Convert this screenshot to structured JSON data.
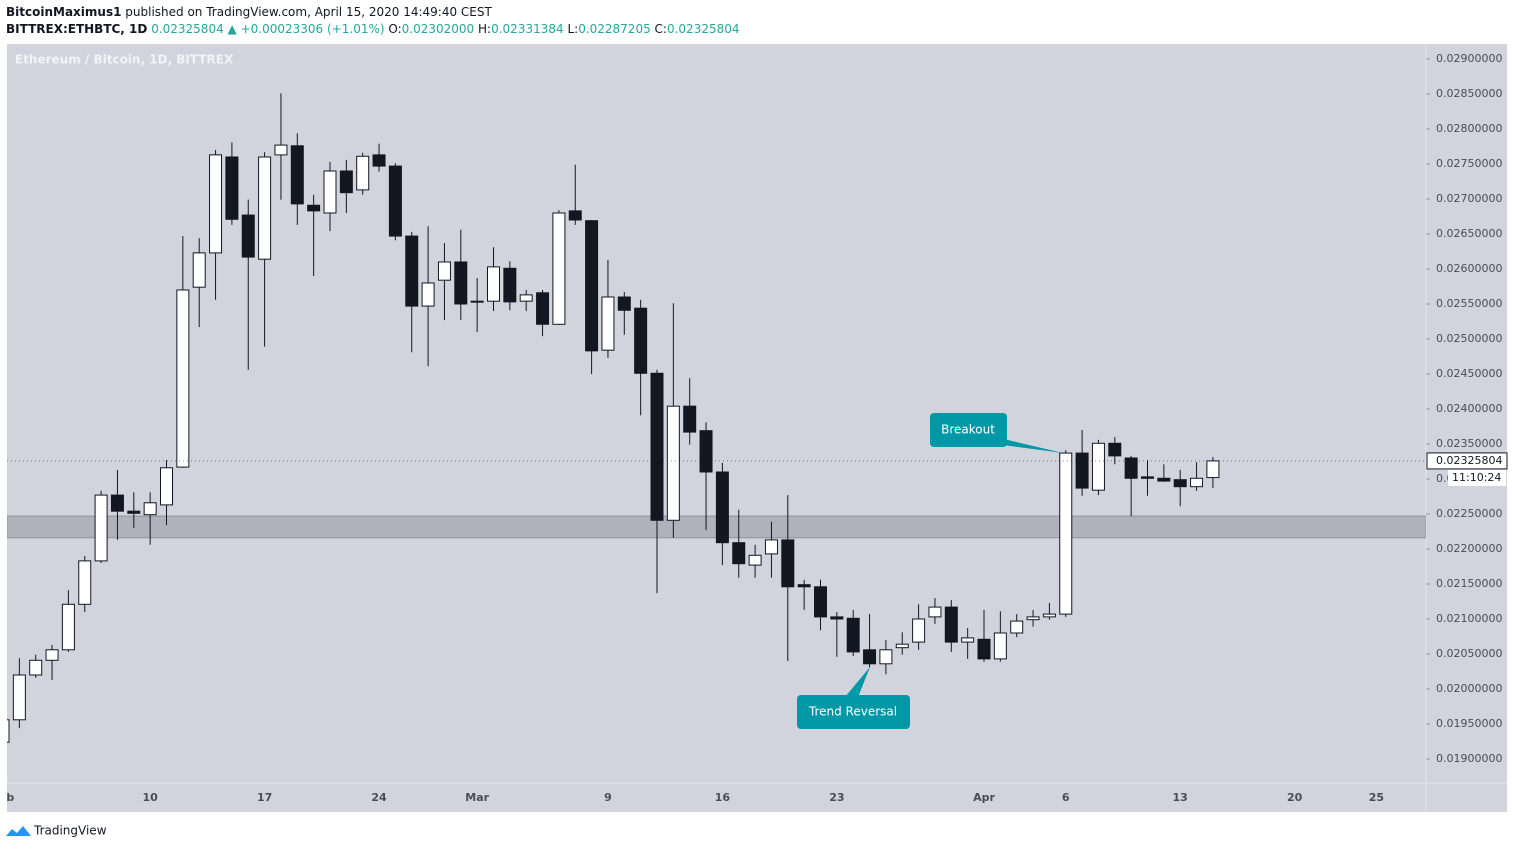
{
  "header": {
    "author": "BitcoinMaximus1",
    "published": "published on TradingView.com, April 15, 2020 14:49:40 CEST",
    "symbol": "BITTREX:ETHBTC, 1D",
    "price": "0.02325804",
    "change": "+0.00023306 (+1.01%)",
    "ohlc": [
      {
        "key": "O:",
        "value": "0.02302000"
      },
      {
        "key": "H:",
        "value": "0.02331384"
      },
      {
        "key": "L:",
        "value": "0.02287205"
      },
      {
        "key": "C:",
        "value": "0.02325804"
      }
    ]
  },
  "chart_data": {
    "type": "candlestick",
    "legend": "Ethereum / Bitcoin, 1D, BITTREX",
    "up_color": "#ffffff",
    "down_color": "#131722",
    "outline_color": "#131722",
    "grid": false,
    "categories": [
      "Feb",
      null,
      null,
      null,
      null,
      null,
      null,
      null,
      null,
      "10",
      null,
      null,
      null,
      null,
      null,
      null,
      "17",
      null,
      null,
      null,
      null,
      null,
      null,
      "24",
      null,
      null,
      null,
      null,
      null,
      "Mar",
      null,
      null,
      null,
      null,
      null,
      null,
      null,
      "9",
      null,
      null,
      null,
      null,
      null,
      null,
      "16",
      null,
      null,
      null,
      null,
      null,
      null,
      "23",
      null,
      null,
      null,
      null,
      null,
      null,
      null,
      null,
      "Apr",
      null,
      null,
      null,
      null,
      "6",
      null,
      null,
      null,
      null,
      null,
      null,
      "13",
      null,
      null,
      null,
      null,
      null,
      null,
      "20",
      null,
      null,
      null,
      null,
      "25",
      null,
      null
    ],
    "open": [
      0.01924,
      0.01956,
      0.0202,
      0.02041,
      0.02056,
      0.02121,
      0.02183,
      0.02277,
      0.02254,
      0.02249,
      0.02263,
      0.02317,
      0.02574,
      0.02623,
      0.0276,
      0.02677,
      0.02614,
      0.02763,
      0.02776,
      0.02691,
      0.0268,
      0.0274,
      0.02713,
      0.02763,
      0.02747,
      0.02647,
      0.02547,
      0.02584,
      0.0261,
      0.02554,
      0.02554,
      0.02601,
      0.02554,
      0.02566,
      0.02521,
      0.02683,
      0.02669,
      0.02484,
      0.0256,
      0.02544,
      0.02451,
      0.02241,
      0.02404,
      0.02369,
      0.0231,
      0.02209,
      0.02177,
      0.02193,
      0.02213,
      0.02149,
      0.02146,
      0.02103,
      0.02101,
      0.02056,
      0.02036,
      0.02059,
      0.02067,
      0.02103,
      0.02117,
      0.02067,
      0.02071,
      0.02043,
      0.0208,
      0.02099,
      0.02103,
      0.02107,
      0.02337,
      0.02284,
      0.02351,
      0.0233,
      0.02303,
      0.02301,
      0.02299,
      0.02289,
      0.02302,
      null,
      null,
      null,
      null,
      null,
      null,
      null,
      null,
      null,
      null,
      null,
      null
    ],
    "high": [
      0.01959,
      0.02044,
      0.02049,
      0.02063,
      0.02141,
      0.0219,
      0.02283,
      0.02313,
      0.02281,
      0.02281,
      0.02327,
      0.02647,
      0.02644,
      0.0277,
      0.02781,
      0.02699,
      0.02767,
      0.02851,
      0.02794,
      0.02706,
      0.02753,
      0.02756,
      0.02766,
      0.02779,
      0.02751,
      0.02653,
      0.02661,
      0.02637,
      0.02656,
      0.02587,
      0.02631,
      0.02611,
      0.0257,
      0.0257,
      0.02684,
      0.02749,
      0.0267,
      0.02613,
      0.02567,
      0.02556,
      0.02456,
      0.02551,
      0.02444,
      0.02381,
      0.02323,
      0.02256,
      0.02206,
      0.02239,
      0.02277,
      0.02156,
      0.02156,
      0.0211,
      0.02113,
      0.02107,
      0.0207,
      0.02081,
      0.02121,
      0.0213,
      0.02127,
      0.02087,
      0.02113,
      0.02111,
      0.02107,
      0.02113,
      0.02123,
      0.02341,
      0.0237,
      0.02356,
      0.0236,
      0.02333,
      0.02327,
      0.02321,
      0.02313,
      0.02324,
      0.02331384,
      null,
      null,
      null,
      null,
      null,
      null,
      null,
      null,
      null,
      null,
      null,
      null
    ],
    "low": [
      0.0192,
      0.01944,
      0.02016,
      0.02013,
      0.02053,
      0.0211,
      0.0218,
      0.02213,
      0.0223,
      0.02206,
      0.02234,
      0.02316,
      0.02517,
      0.02556,
      0.02663,
      0.02456,
      0.02489,
      0.02699,
      0.02663,
      0.0259,
      0.02654,
      0.0268,
      0.02706,
      0.02739,
      0.02641,
      0.02481,
      0.02461,
      0.02527,
      0.02527,
      0.0251,
      0.0254,
      0.02541,
      0.0254,
      0.02504,
      0.0252,
      0.02663,
      0.0245,
      0.02473,
      0.02506,
      0.02391,
      0.02137,
      0.02216,
      0.02349,
      0.02227,
      0.02177,
      0.02159,
      0.02159,
      0.02159,
      0.0204,
      0.02113,
      0.02084,
      0.02046,
      0.02047,
      0.02031,
      0.02021,
      0.02049,
      0.02056,
      0.02093,
      0.02053,
      0.02043,
      0.02039,
      0.02039,
      0.02074,
      0.02089,
      0.02099,
      0.02103,
      0.02276,
      0.02277,
      0.02321,
      0.02247,
      0.02276,
      0.02296,
      0.02261,
      0.02283,
      0.02287205,
      null,
      null,
      null,
      null,
      null,
      null,
      null,
      null,
      null,
      null,
      null,
      null
    ],
    "close": [
      0.01956,
      0.0202,
      0.02041,
      0.02056,
      0.02121,
      0.02183,
      0.02277,
      0.02254,
      0.02251,
      0.02266,
      0.02316,
      0.0257,
      0.02623,
      0.02763,
      0.02671,
      0.02617,
      0.0276,
      0.02777,
      0.02693,
      0.02683,
      0.0274,
      0.02709,
      0.02761,
      0.02747,
      0.02647,
      0.02547,
      0.0258,
      0.0261,
      0.0255,
      0.02553,
      0.02603,
      0.02553,
      0.02563,
      0.02521,
      0.0268,
      0.0267,
      0.02483,
      0.0256,
      0.02541,
      0.02451,
      0.02241,
      0.02404,
      0.02367,
      0.0231,
      0.02209,
      0.02179,
      0.02191,
      0.02213,
      0.02146,
      0.02146,
      0.02103,
      0.021,
      0.02053,
      0.02036,
      0.02056,
      0.02064,
      0.021,
      0.02117,
      0.02067,
      0.02073,
      0.02043,
      0.0208,
      0.02097,
      0.02103,
      0.02107,
      0.02337,
      0.02287,
      0.02351,
      0.02333,
      0.02301,
      0.02301,
      0.02297,
      0.02289,
      0.02301,
      0.02325804,
      null,
      null,
      null,
      null,
      null,
      null,
      null,
      null,
      null,
      null,
      null,
      null
    ],
    "zone": [
      0.02216,
      0.02247
    ],
    "zone_color": "#a6a9b3",
    "ylim": [
      0.018657,
      0.029214
    ],
    "yticks": [
      {
        "value": 0.029,
        "label": "0.02900000"
      },
      {
        "value": 0.0285,
        "label": "0.02850000"
      },
      {
        "value": 0.028,
        "label": "0.02800000"
      },
      {
        "value": 0.0275,
        "label": "0.02750000"
      },
      {
        "value": 0.027,
        "label": "0.02700000"
      },
      {
        "value": 0.0265,
        "label": "0.02650000"
      },
      {
        "value": 0.026,
        "label": "0.02600000"
      },
      {
        "value": 0.0255,
        "label": "0.02550000"
      },
      {
        "value": 0.025,
        "label": "0.02500000"
      },
      {
        "value": 0.0245,
        "label": "0.02450000"
      },
      {
        "value": 0.024,
        "label": "0.02400000"
      },
      {
        "value": 0.0235,
        "label": "0.02350000"
      },
      {
        "value": 0.023,
        "label": "0.02300000"
      },
      {
        "value": 0.0225,
        "label": "0.02250000"
      },
      {
        "value": 0.022,
        "label": "0.02200000"
      },
      {
        "value": 0.0215,
        "label": "0.02150000"
      },
      {
        "value": 0.021,
        "label": "0.02100000"
      },
      {
        "value": 0.0205,
        "label": "0.02050000"
      },
      {
        "value": 0.02,
        "label": "0.02000000"
      },
      {
        "value": 0.0195,
        "label": "0.01950000"
      },
      {
        "value": 0.019,
        "label": "0.01900000"
      }
    ],
    "last_price": 0.02325804,
    "countdown": "11:10:24",
    "annotations": [
      "Breakout",
      "Trend Reversal"
    ],
    "annotation_color": "#0097a7"
  },
  "footer": {
    "brand": "TradingView"
  }
}
